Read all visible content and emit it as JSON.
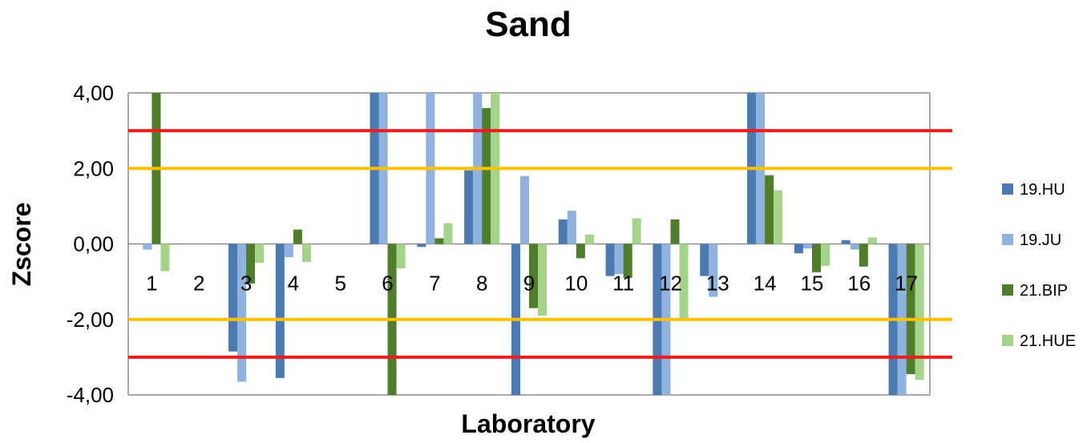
{
  "chart_data": {
    "type": "bar",
    "title": "Sand",
    "xlabel": "Laboratory",
    "ylabel": "Zscore",
    "ylim": [
      -4,
      4
    ],
    "yticks": [
      4,
      2,
      0,
      -2,
      -4
    ],
    "ytick_labels": [
      "4,00",
      "2,00",
      "0,00",
      "-2,00",
      "-4,00"
    ],
    "categories": [
      "1",
      "2",
      "3",
      "4",
      "5",
      "6",
      "7",
      "8",
      "9",
      "10",
      "11",
      "12",
      "13",
      "14",
      "15",
      "16",
      "17"
    ],
    "series": [
      {
        "name": "19.HU",
        "color": "#4a7ab0",
        "values": [
          0,
          0,
          -2.85,
          -3.55,
          0,
          4.0,
          -0.08,
          1.95,
          -4.0,
          0.65,
          -0.85,
          -4.0,
          -0.85,
          4.0,
          -0.25,
          0.1,
          -4.0
        ]
      },
      {
        "name": "19.JU",
        "color": "#8fb3de",
        "values": [
          -0.15,
          0,
          -3.65,
          -0.35,
          0,
          4.0,
          4.0,
          4.0,
          1.8,
          0.88,
          -0.8,
          -4.0,
          -1.4,
          4.0,
          -0.12,
          -0.15,
          -4.0
        ]
      },
      {
        "name": "21.BIP",
        "color": "#4f7d2c",
        "values": [
          4.0,
          0,
          -1.05,
          0.38,
          0,
          -4.0,
          0.15,
          3.6,
          -1.7,
          -0.38,
          -0.9,
          0.65,
          0,
          1.82,
          -0.75,
          -0.6,
          -3.45
        ]
      },
      {
        "name": "21.HUE",
        "color": "#a6d38a",
        "values": [
          -0.72,
          0,
          -0.5,
          -0.48,
          0,
          -0.65,
          0.55,
          4.0,
          -1.9,
          0.25,
          0.68,
          -2.0,
          0,
          1.42,
          -0.58,
          0.17,
          -3.6
        ]
      }
    ],
    "reference_lines": [
      {
        "value": 3,
        "color": "#ee1c1c"
      },
      {
        "value": 2,
        "color": "#ffc000"
      },
      {
        "value": -2,
        "color": "#ffc000"
      },
      {
        "value": -3,
        "color": "#ee1c1c"
      }
    ],
    "grid": true,
    "legend_position": "right"
  }
}
